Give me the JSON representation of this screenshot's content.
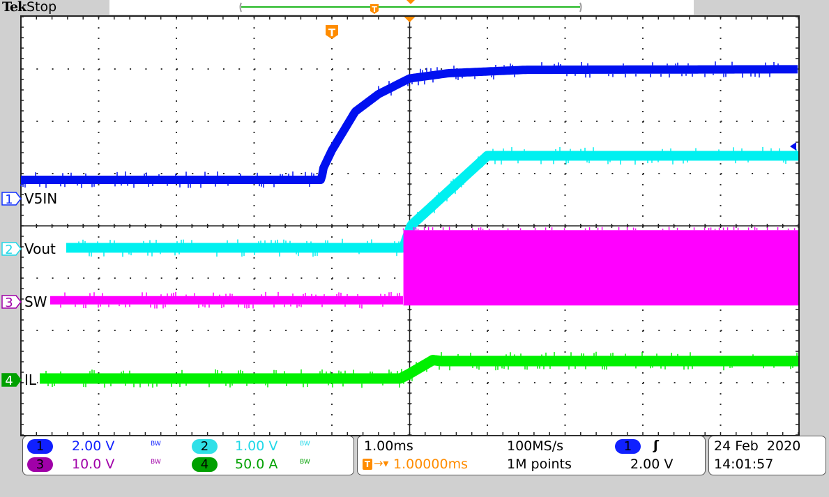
{
  "header": {
    "brand": "Tek",
    "status": "Stop"
  },
  "channels": [
    {
      "id": "1",
      "label": "V5IN",
      "scale": "2.00 V",
      "bw": "BW",
      "color": "#0010f0",
      "marker_color": "#1030ff"
    },
    {
      "id": "2",
      "label": "Vout",
      "scale": "1.00 V",
      "bw": "BW",
      "color": "#00f0f0",
      "marker_color": "#20d8e8"
    },
    {
      "id": "3",
      "label": "SW",
      "scale": "10.0 V",
      "bw": "BW",
      "color": "#ff00ff",
      "marker_color": "#a000a8"
    },
    {
      "id": "4",
      "label": "IL",
      "scale": "50.0 A",
      "bw": "BW",
      "color": "#00f000",
      "marker_color": "#00a000"
    }
  ],
  "timebase": {
    "scale": "1.00ms",
    "delay_icon": "trigger-delay-icon",
    "delay": "1.00000ms",
    "sample_rate": "100MS/s",
    "record_length": "1M points"
  },
  "trigger": {
    "source": "1",
    "slope_icon": "rising-edge-icon",
    "slope_glyph": "ʃ",
    "level": "2.00 V",
    "color": "#ff8c00"
  },
  "datetime": {
    "date": "24 Feb  2020",
    "time": "14:01:57"
  },
  "chart_data": {
    "type": "line",
    "xlabel": "",
    "ylabel": "",
    "x_unit": "ms",
    "xlim": [
      -4,
      6
    ],
    "x_divisions": 10,
    "y_divisions": 8,
    "grid": true,
    "series": [
      {
        "name": "V5IN",
        "channel": "1",
        "unit": "V",
        "volts_per_div": 2.0,
        "x": [
          -4,
          -0.13,
          -0.12,
          0,
          0.3,
          0.6,
          1.0,
          1.5,
          2.5,
          6
        ],
        "y": [
          0.72,
          0.72,
          1.1,
          1.85,
          3.33,
          4.0,
          4.6,
          4.8,
          4.93,
          4.95
        ]
      },
      {
        "name": "Vout",
        "channel": "2",
        "unit": "V",
        "volts_per_div": 1.0,
        "x": [
          -4,
          0.92,
          1.02,
          2.0,
          6
        ],
        "y": [
          0.02,
          0.02,
          0.45,
          1.78,
          1.78
        ]
      },
      {
        "name": "SW",
        "channel": "3",
        "unit": "V",
        "volts_per_div": 10.0,
        "x": [
          -4,
          0.92
        ],
        "y": [
          0.3,
          0.3
        ],
        "switching_after_ms": 0.92,
        "switching_envelope": [
          -0.7,
          13.7
        ]
      },
      {
        "name": "IL",
        "channel": "4",
        "unit": "A",
        "volts_per_div": 50.0,
        "x": [
          -4,
          0.88,
          1.0,
          1.3,
          1.4,
          6
        ],
        "y": [
          1.3,
          1.3,
          6,
          19,
          18,
          18
        ]
      }
    ],
    "trigger_time_ms": 0,
    "trigger_level_v": 2.0
  }
}
